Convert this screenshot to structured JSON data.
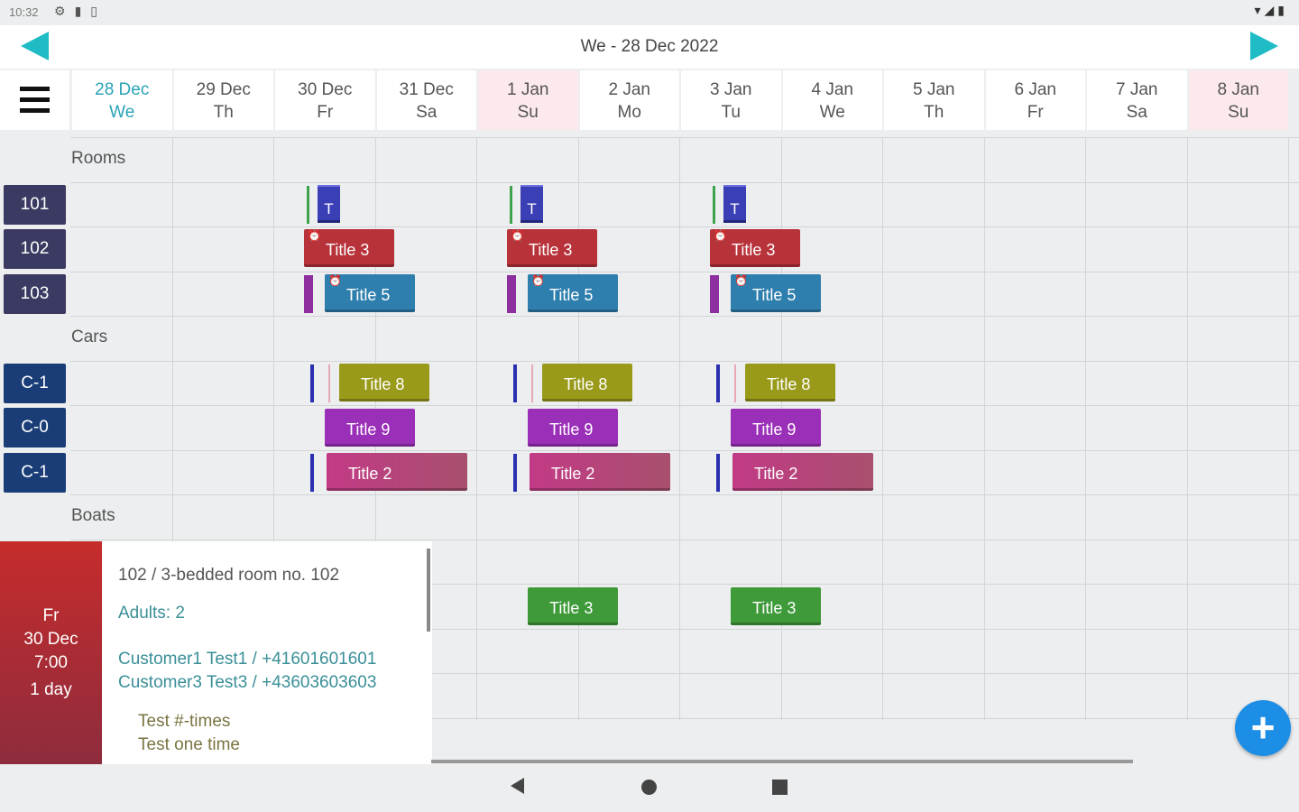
{
  "status_bar": {
    "time": "10:32",
    "icons": [
      "settings-dot-icon",
      "sd-card-icon",
      "clipboard-icon"
    ],
    "right_icons": [
      "wifi-icon",
      "signal-icon",
      "battery-icon"
    ]
  },
  "header": {
    "title": "We - 28 Dec 2022",
    "prev_icon": "arrow-left-icon",
    "next_icon": "arrow-right-icon",
    "accent": "#1fbcc6"
  },
  "days": [
    {
      "date": "28 Dec",
      "weekday": "We",
      "today": true,
      "weekend": false
    },
    {
      "date": "29 Dec",
      "weekday": "Th",
      "today": false,
      "weekend": false
    },
    {
      "date": "30 Dec",
      "weekday": "Fr",
      "today": false,
      "weekend": false
    },
    {
      "date": "31 Dec",
      "weekday": "Sa",
      "today": false,
      "weekend": false
    },
    {
      "date": "1 Jan",
      "weekday": "Su",
      "today": false,
      "weekend": true
    },
    {
      "date": "2 Jan",
      "weekday": "Mo",
      "today": false,
      "weekend": false
    },
    {
      "date": "3 Jan",
      "weekday": "Tu",
      "today": false,
      "weekend": false
    },
    {
      "date": "4 Jan",
      "weekday": "We",
      "today": false,
      "weekend": false
    },
    {
      "date": "5 Jan",
      "weekday": "Th",
      "today": false,
      "weekend": false
    },
    {
      "date": "6 Jan",
      "weekday": "Fr",
      "today": false,
      "weekend": false
    },
    {
      "date": "7 Jan",
      "weekday": "Sa",
      "today": false,
      "weekend": false
    },
    {
      "date": "8 Jan",
      "weekday": "Su",
      "today": false,
      "weekend": true
    }
  ],
  "groups": [
    {
      "name": "Rooms",
      "resources": [
        "101",
        "102",
        "103"
      ]
    },
    {
      "name": "Cars",
      "resources": [
        "C-1",
        "C-0",
        "C-1"
      ]
    },
    {
      "name": "Boats",
      "resources": []
    }
  ],
  "booking_titles": {
    "t": "T",
    "title3": "Title 3",
    "title5": "Title 5",
    "title8": "Title 8",
    "title9": "Title 9",
    "title2": "Title 2"
  },
  "booking_colors": {
    "title3": "#b8323a",
    "title5": "#2f7fae",
    "title8": "#9a9a1a",
    "title9": "#9a2fb8",
    "title2": "#c23a86",
    "title3_green": "#3f9a3a",
    "t": "#3b3fb6"
  },
  "detail": {
    "side": {
      "weekday": "Fr",
      "date": "30 Dec",
      "time": "7:00",
      "duration": "1 day"
    },
    "room": "102  /  3-bedded room no. 102",
    "adults": "Adults: 2",
    "customers": [
      "Customer1 Test1 / +41601601601",
      "Customer3 Test3 / +43603603603"
    ],
    "notes": [
      "Test #-times",
      "Test one time"
    ]
  },
  "fab_icon": "plus-icon",
  "system_nav": [
    "back-icon",
    "home-icon",
    "recents-icon"
  ]
}
